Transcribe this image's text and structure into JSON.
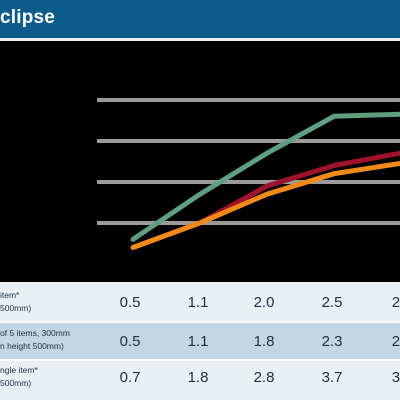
{
  "header": {
    "title": "clipse"
  },
  "colors": {
    "header_bg": "#0c5c8c",
    "chart_bg": "#000000",
    "grid": "#9a9a9a",
    "green": "#5f9e7f",
    "red": "#a0112b",
    "orange": "#f08a18",
    "row_light": "#e9f0f5",
    "row_dark": "#c3d6e6"
  },
  "table": {
    "rows": [
      {
        "label_lines": [
          "item*",
          "500mm)"
        ],
        "values": [
          "0.5",
          "1.1",
          "2.0",
          "2.5",
          "2."
        ]
      },
      {
        "label_lines": [
          "of 5 items, 300mm",
          "n height 500mm)"
        ],
        "values": [
          "0.5",
          "1.1",
          "1.8",
          "2.3",
          "2."
        ]
      },
      {
        "label_lines": [
          "ngle item*",
          "500mm)"
        ],
        "values": [
          "0.7",
          "1.8",
          "2.8",
          "3.7",
          "3."
        ]
      }
    ]
  },
  "chart_data": {
    "type": "line",
    "x": [
      1,
      2,
      3,
      4,
      5
    ],
    "ylim": [
      0,
      4.5
    ],
    "grid": true,
    "series": [
      {
        "values": [
          0.7,
          1.8,
          2.8,
          3.7,
          3.75
        ],
        "color": "#5f9e7f"
      },
      {
        "values": [
          0.5,
          1.1,
          2.0,
          2.5,
          2.8
        ],
        "color": "#a0112b"
      },
      {
        "values": [
          0.5,
          1.1,
          1.8,
          2.3,
          2.55
        ],
        "color": "#f08a18"
      }
    ]
  }
}
